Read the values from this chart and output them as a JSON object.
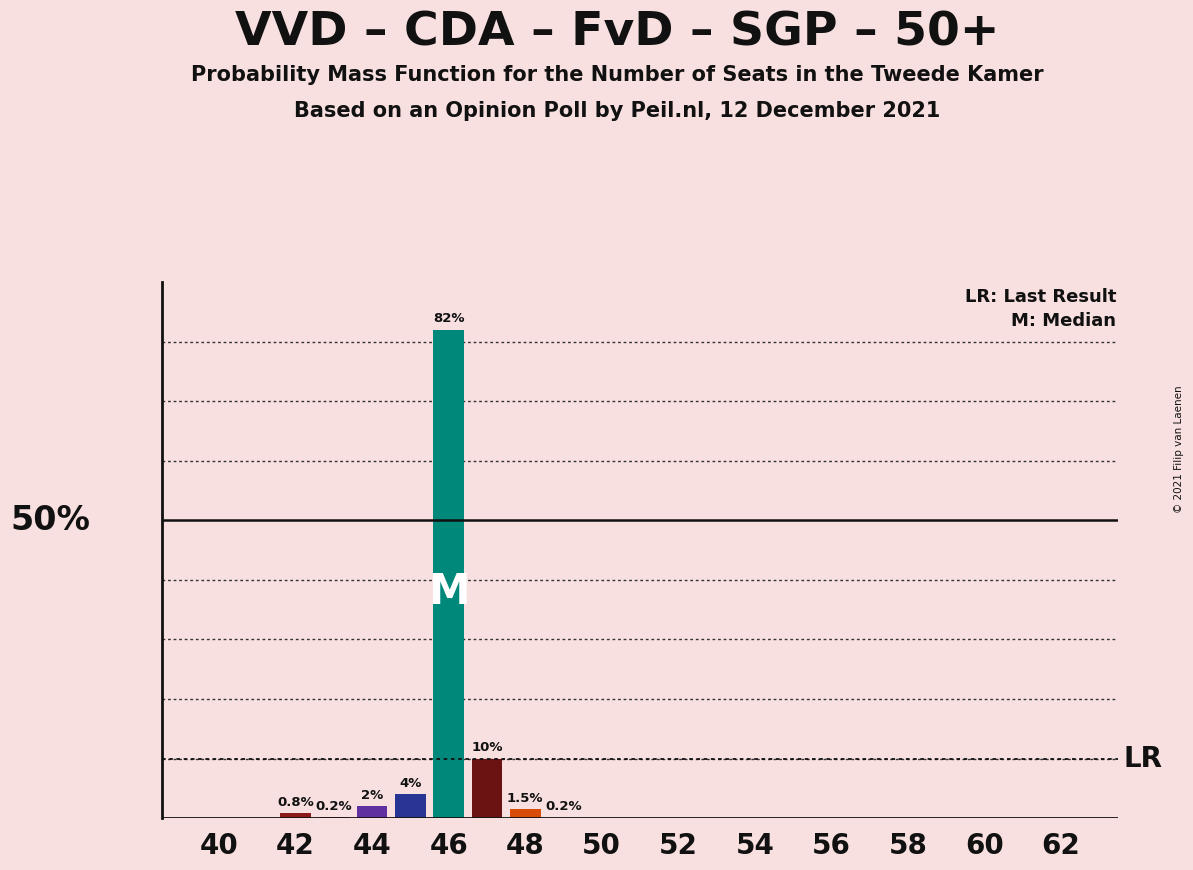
{
  "title": "VVD – CDA – FvD – SGP – 50+",
  "subtitle1": "Probability Mass Function for the Number of Seats in the Tweede Kamer",
  "subtitle2": "Based on an Opinion Poll by Peil.nl, 12 December 2021",
  "copyright": "© 2021 Filip van Laenen",
  "background_color": "#f9e0e0",
  "seats": [
    40,
    41,
    42,
    43,
    44,
    45,
    46,
    47,
    48,
    49,
    50,
    51,
    52,
    53,
    54,
    55,
    56,
    57,
    58,
    59,
    60,
    61,
    62
  ],
  "probabilities": [
    0.0,
    0.0,
    0.8,
    0.2,
    2.0,
    4.0,
    82.0,
    10.0,
    1.5,
    0.2,
    0.0,
    0.0,
    0.0,
    0.0,
    0.0,
    0.0,
    0.0,
    0.0,
    0.0,
    0.0,
    0.0,
    0.0,
    0.0
  ],
  "bar_colors": [
    "#f9e0e0",
    "#f9e0e0",
    "#8b1a1a",
    "#8040a0",
    "#6030a0",
    "#283593",
    "#00897b",
    "#6b1212",
    "#d84c0a",
    "#f9e0e0",
    "#f9e0e0",
    "#f9e0e0",
    "#f9e0e0",
    "#f9e0e0",
    "#f9e0e0",
    "#f9e0e0",
    "#f9e0e0",
    "#f9e0e0",
    "#f9e0e0",
    "#f9e0e0",
    "#f9e0e0",
    "#f9e0e0",
    "#f9e0e0"
  ],
  "median_seat": 46,
  "last_result_pct": 10.0,
  "lr_label": "LR",
  "lr_legend": "LR: Last Result",
  "m_legend": "M: Median",
  "xlabel_seats": [
    40,
    42,
    44,
    46,
    48,
    50,
    52,
    54,
    56,
    58,
    60,
    62
  ],
  "ymax": 90,
  "solid_level": 50,
  "dotted_levels": [
    10,
    20,
    30,
    40,
    60,
    70,
    80
  ]
}
